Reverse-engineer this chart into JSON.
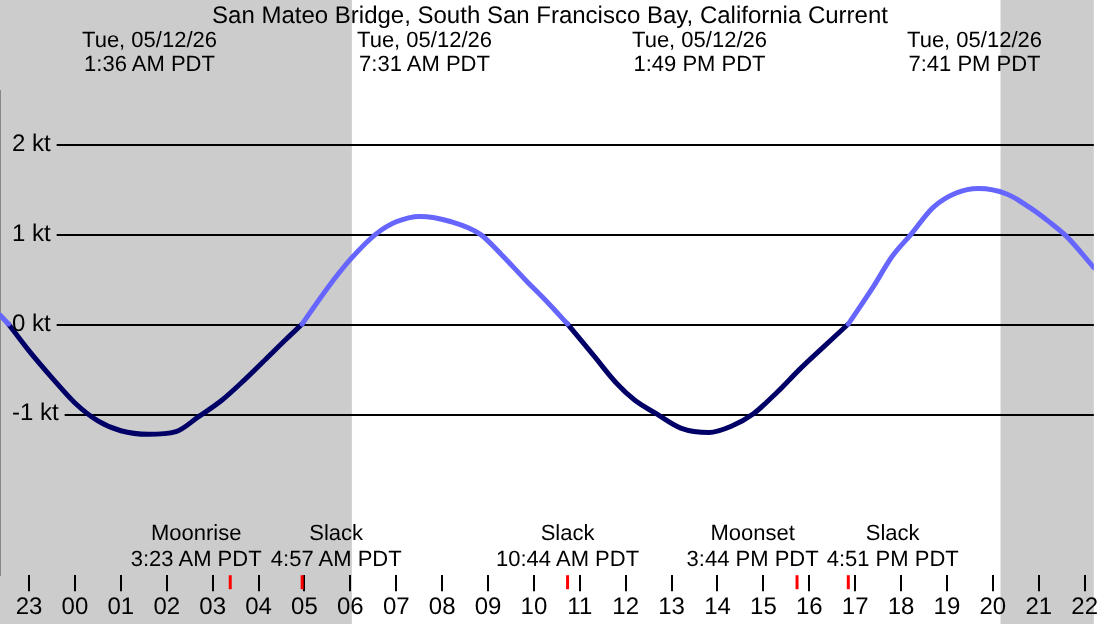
{
  "chart_data": {
    "type": "line",
    "title": "San Mateo Bridge, South San Francisco Bay, California Current",
    "xlim": [
      "--05-11T22:22",
      "--05-12T22:12"
    ],
    "xticks": [
      {
        "value": "--05-11T23:00",
        "label": "23"
      },
      {
        "value": "--05-12T00:00",
        "label": "00"
      },
      {
        "value": "--05-12T01:00",
        "label": "01"
      },
      {
        "value": "--05-12T02:00",
        "label": "02"
      },
      {
        "value": "--05-12T03:00",
        "label": "03"
      },
      {
        "value": "--05-12T04:00",
        "label": "04"
      },
      {
        "value": "--05-12T05:00",
        "label": "05"
      },
      {
        "value": "--05-12T06:00",
        "label": "06"
      },
      {
        "value": "--05-12T07:00",
        "label": "07"
      },
      {
        "value": "--05-12T08:00",
        "label": "08"
      },
      {
        "value": "--05-12T09:00",
        "label": "09"
      },
      {
        "value": "--05-12T10:00",
        "label": "10"
      },
      {
        "value": "--05-12T11:00",
        "label": "11"
      },
      {
        "value": "--05-12T12:00",
        "label": "12"
      },
      {
        "value": "--05-12T13:00",
        "label": "13"
      },
      {
        "value": "--05-12T14:00",
        "label": "14"
      },
      {
        "value": "--05-12T15:00",
        "label": "15"
      },
      {
        "value": "--05-12T16:00",
        "label": "16"
      },
      {
        "value": "--05-12T17:00",
        "label": "17"
      },
      {
        "value": "--05-12T18:00",
        "label": "18"
      },
      {
        "value": "--05-12T19:00",
        "label": "19"
      },
      {
        "value": "--05-12T20:00",
        "label": "20"
      },
      {
        "value": "--05-12T21:00",
        "label": "21"
      },
      {
        "value": "--05-12T22:00",
        "label": "22"
      }
    ],
    "ylim": [
      -2.8,
      2.6
    ],
    "yticks": [
      {
        "value": -1,
        "label": "-1 kt"
      },
      {
        "value": 0,
        "label": "0 kt"
      },
      {
        "value": 1,
        "label": "1 kt"
      },
      {
        "value": 2,
        "label": "2 kt"
      }
    ],
    "grid": "y",
    "series": [
      {
        "color": "#6666ff",
        "x": [
          "--05-11T22:22",
          "--05-11T22:33",
          null,
          "--05-12T04:57",
          "--05-12T05:30",
          "--05-12T06:00",
          "--05-12T06:33",
          "--05-12T07:00",
          "--05-12T07:31",
          "--05-12T08:12",
          "--05-12T08:50",
          "--05-12T09:18",
          "--05-12T09:48",
          "--05-12T10:18",
          "--05-12T10:44",
          null,
          "--05-12T16:51",
          "--05-12T17:24",
          "--05-12T17:48",
          "--05-12T18:13",
          "--05-12T18:42",
          "--05-12T19:12",
          "--05-12T19:41",
          "--05-12T20:18",
          "--05-12T20:48",
          "--05-12T21:12",
          "--05-12T21:36",
          "--05-12T22:12"
        ],
        "values": [
          0.1,
          0,
          null,
          0,
          0.4,
          0.72,
          1,
          1.14,
          1.2,
          1.14,
          1,
          0.77,
          0.5,
          0.24,
          0,
          null,
          0,
          0.42,
          0.75,
          1,
          1.3,
          1.46,
          1.51,
          1.45,
          1.3,
          1.15,
          0.98,
          0.63
        ]
      },
      {
        "color": "#000066",
        "x": [
          "--05-11T22:33",
          "--05-11T23:00",
          "--05-11T23:30",
          "--05-12T00:00",
          "--05-12T00:30",
          "--05-12T01:00",
          "--05-12T01:36",
          "--05-12T02:12",
          "--05-12T02:42",
          "--05-12T03:12",
          "--05-12T03:42",
          "--05-12T04:12",
          "--05-12T04:36",
          "--05-12T04:57",
          null,
          "--05-12T10:44",
          "--05-12T11:18",
          "--05-12T11:48",
          "--05-12T12:12",
          "--05-12T12:40",
          "--05-12T13:12",
          "--05-12T13:49",
          "--05-12T14:18",
          "--05-12T14:47",
          "--05-12T15:18",
          "--05-12T15:48",
          "--05-12T16:18",
          "--05-12T16:51"
        ],
        "values": [
          0,
          -0.3,
          -0.6,
          -0.88,
          -1.08,
          -1.19,
          -1.23,
          -1.2,
          -1.03,
          -0.85,
          -0.62,
          -0.37,
          -0.17,
          0,
          null,
          0,
          -0.35,
          -0.66,
          -0.85,
          -1,
          -1.16,
          -1.21,
          -1.14,
          -1,
          -0.76,
          -0.5,
          -0.26,
          0
        ]
      }
    ],
    "bands": [
      {
        "axis": "x",
        "from": "--05-11T22:22",
        "to": "--05-12T06:02",
        "color": "#cccccc"
      },
      {
        "axis": "x",
        "from": "--05-12T20:10",
        "to": "--05-12T22:12",
        "color": "#cccccc"
      }
    ],
    "ref_lines": [
      {
        "axis": "x",
        "value": "--05-12T03:23",
        "label": "Moonrise\n3:23 AM PDT",
        "color": "#ff0000"
      },
      {
        "axis": "x",
        "value": "--05-12T04:57",
        "label": "Slack\n4:57 AM PDT",
        "color": "#ff0000"
      },
      {
        "axis": "x",
        "value": "--05-12T10:44",
        "label": "Slack\n10:44 AM PDT",
        "color": "#ff0000"
      },
      {
        "axis": "x",
        "value": "--05-12T15:44",
        "label": "Moonset\n3:44 PM PDT",
        "color": "#ff0000"
      },
      {
        "axis": "x",
        "value": "--05-12T16:51",
        "label": "Slack\n4:51 PM PDT",
        "color": "#ff0000"
      }
    ],
    "annotations": [
      "Tue, 05/12/26\n1:36 AM PDT",
      "Tue, 05/12/26\n7:31 AM PDT",
      "Tue, 05/12/26\n1:49 PM PDT",
      "Tue, 05/12/26\n7:41 PM PDT"
    ]
  }
}
